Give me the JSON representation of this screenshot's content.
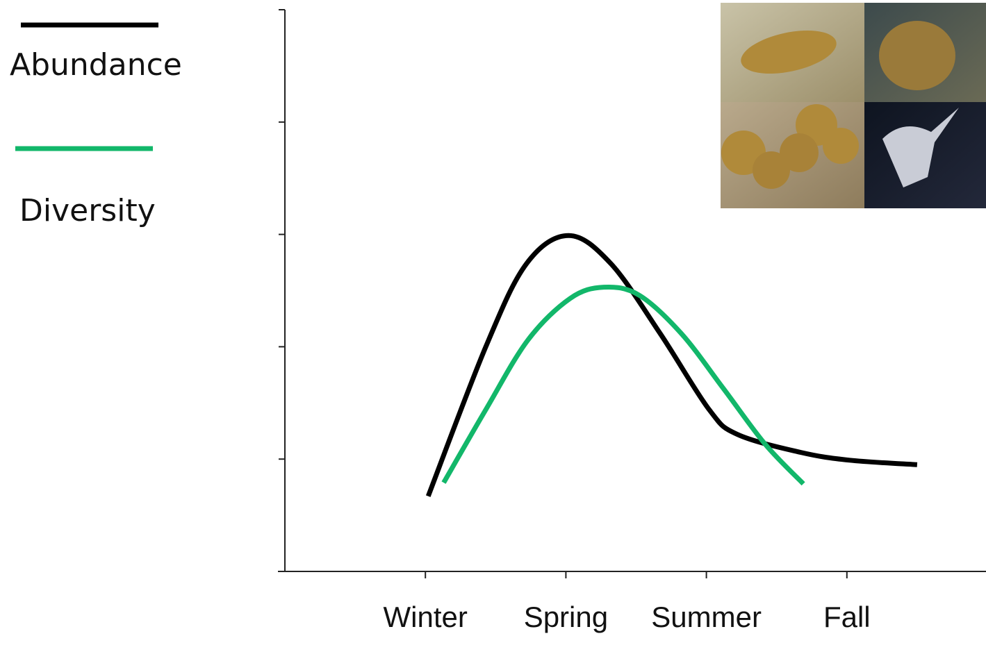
{
  "chart_data": {
    "type": "line",
    "xlim": [
      0,
      5
    ],
    "xticks": [
      {
        "value": 1,
        "label": "Winter"
      },
      {
        "value": 2,
        "label": "Spring"
      },
      {
        "value": 3,
        "label": "Summer"
      },
      {
        "value": 4,
        "label": "Fall"
      }
    ],
    "ylim": [
      0,
      5
    ],
    "yticks": [
      0,
      1,
      2,
      3,
      4,
      5
    ],
    "series": [
      {
        "name": "Abundance",
        "color": "#000000",
        "x": [
          1.02,
          1.43,
          1.72,
          2.02,
          2.32,
          2.67,
          3.02,
          3.22,
          3.67,
          4.02,
          4.5
        ],
        "values": [
          0.67,
          2.0,
          2.74,
          2.99,
          2.74,
          2.12,
          1.44,
          1.22,
          1.06,
          0.99,
          0.95
        ]
      },
      {
        "name": "Diversity",
        "color": "#12b76a",
        "x": [
          1.13,
          1.43,
          1.73,
          2.03,
          2.27,
          2.52,
          2.82,
          3.12,
          3.42,
          3.69
        ],
        "values": [
          0.79,
          1.44,
          2.06,
          2.43,
          2.53,
          2.46,
          2.12,
          1.63,
          1.13,
          0.78
        ]
      }
    ]
  }
}
